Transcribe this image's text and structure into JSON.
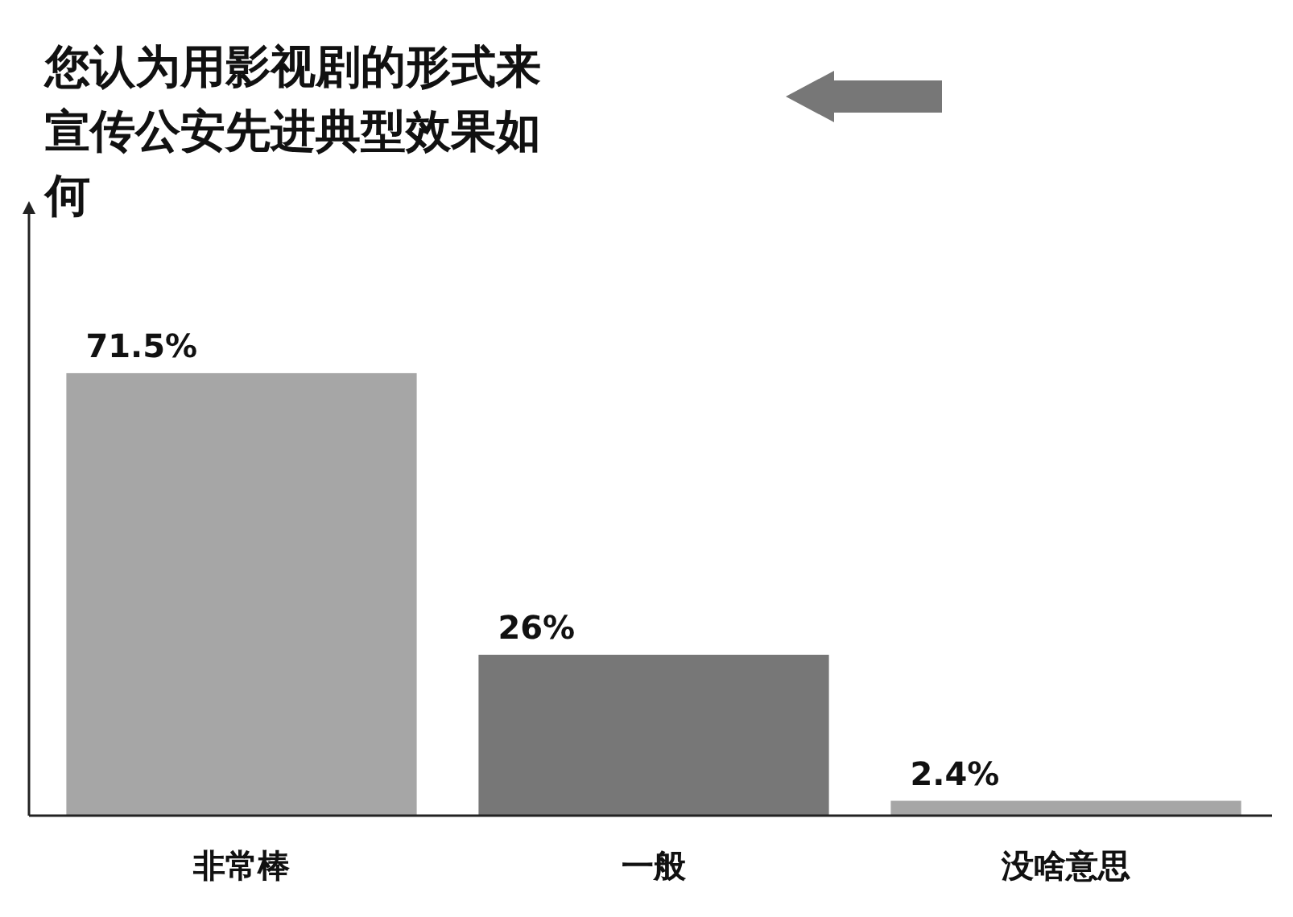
{
  "chart_data": {
    "type": "bar",
    "title": "您认为用影视剧的形式来宣传公安先进典型效果如何",
    "categories": [
      "非常棒",
      "一般",
      "没啥意思"
    ],
    "values": [
      71.5,
      26,
      2.4
    ],
    "colors": [
      "#a6a6a6",
      "#777777",
      "#a6a6a6"
    ],
    "value_labels": [
      "71.5%",
      "26%",
      "2.4%"
    ]
  }
}
